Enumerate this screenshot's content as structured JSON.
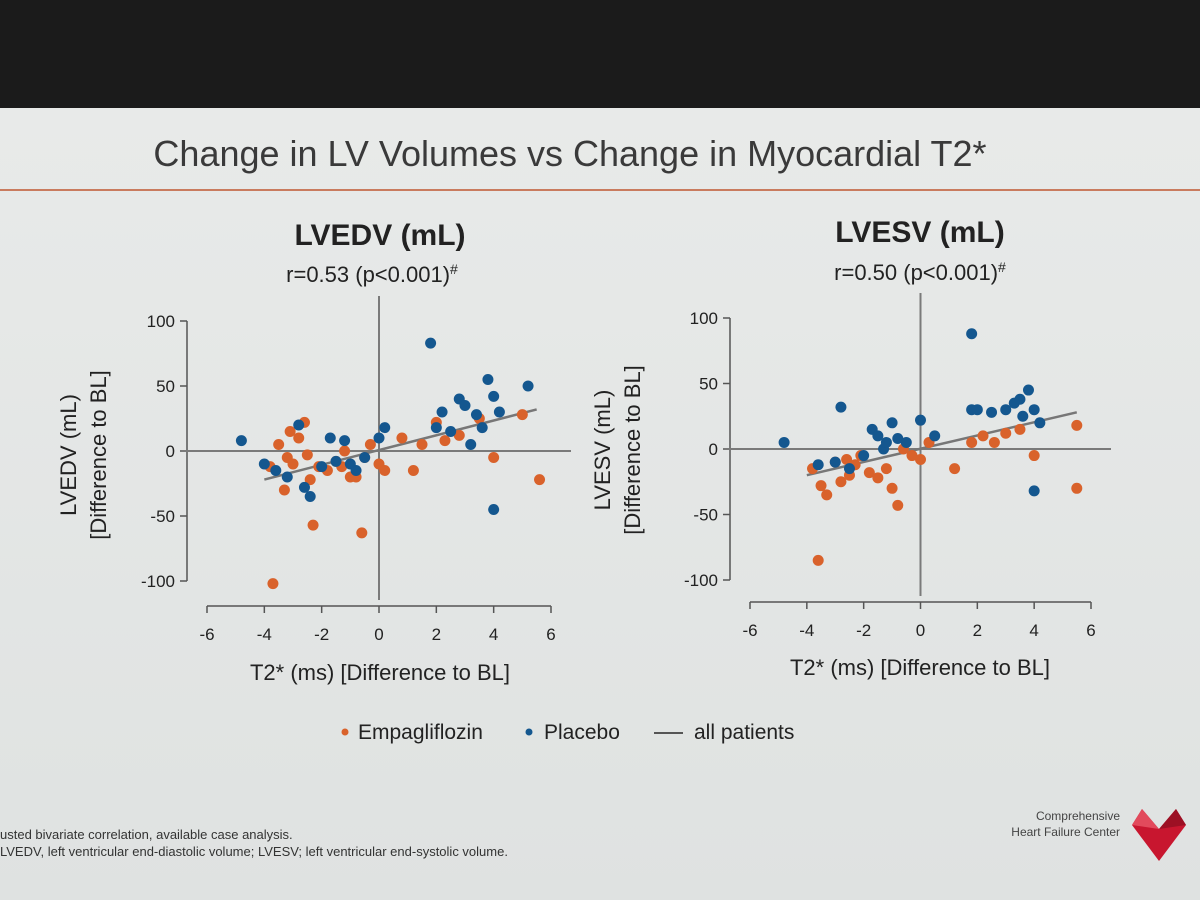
{
  "slide_title": "Change in LV Volumes vs Change in Myocardial T2*",
  "colors": {
    "empagliflozin": "#d9622b",
    "placebo": "#14578f",
    "trend": "#777777",
    "axis": "#555555"
  },
  "legend": {
    "empagliflozin": "Empagliflozin",
    "placebo": "Placebo",
    "all": "all patients"
  },
  "footnote": {
    "line1": "usted bivariate correlation, available case analysis.",
    "line2": "LVEDV, left ventricular end-diastolic volume; LVESV; left ventricular end-systolic volume."
  },
  "logo": {
    "line1": "Comprehensive",
    "line2": "Heart Failure Center"
  },
  "chart_data": [
    {
      "type": "scatter",
      "title": "LVEDV (mL)",
      "correlation": "r=0.53 (p<0.001)",
      "correlation_mark": "#",
      "xlabel": "T2* (ms) [Difference to BL]",
      "ylabel_line1": "LVEDV (mL)",
      "ylabel_line2": "[Difference to BL]",
      "xlim": [
        -6,
        6
      ],
      "ylim": [
        -100,
        100
      ],
      "xticks": [
        "-6",
        "-4",
        "-2",
        "0",
        "2",
        "4",
        "6"
      ],
      "yticks": [
        "100",
        "50",
        "0",
        "-50",
        "-100"
      ],
      "trend": [
        [
          -4,
          -22
        ],
        [
          5.5,
          32
        ]
      ],
      "series": [
        {
          "name": "Empagliflozin",
          "points": [
            [
              -3.8,
              -12
            ],
            [
              -3.5,
              5
            ],
            [
              -3.2,
              -5
            ],
            [
              -3,
              -10
            ],
            [
              -3.3,
              -30
            ],
            [
              -3.1,
              15
            ],
            [
              -2.8,
              10
            ],
            [
              -2.6,
              22
            ],
            [
              -2.5,
              -3
            ],
            [
              -2.4,
              -22
            ],
            [
              -2.3,
              -57
            ],
            [
              -2.1,
              -12
            ],
            [
              -1.8,
              -15
            ],
            [
              -1.5,
              -8
            ],
            [
              -1.3,
              -12
            ],
            [
              -1.2,
              0
            ],
            [
              -1,
              -20
            ],
            [
              -0.8,
              -20
            ],
            [
              -0.6,
              -63
            ],
            [
              -0.5,
              -5
            ],
            [
              -0.3,
              5
            ],
            [
              0,
              -10
            ],
            [
              0.2,
              -15
            ],
            [
              0.8,
              10
            ],
            [
              1.2,
              -15
            ],
            [
              1.5,
              5
            ],
            [
              2,
              22
            ],
            [
              2.3,
              8
            ],
            [
              2.8,
              12
            ],
            [
              3.5,
              25
            ],
            [
              4,
              -5
            ],
            [
              5,
              28
            ],
            [
              5.6,
              -22
            ],
            [
              -3.7,
              -102
            ]
          ]
        },
        {
          "name": "Placebo",
          "points": [
            [
              -4.8,
              8
            ],
            [
              -4,
              -10
            ],
            [
              -3.6,
              -15
            ],
            [
              -3.2,
              -20
            ],
            [
              -2.8,
              20
            ],
            [
              -2.6,
              -28
            ],
            [
              -2.4,
              -35
            ],
            [
              -2,
              -12
            ],
            [
              -1.7,
              10
            ],
            [
              -1.5,
              -8
            ],
            [
              -1.2,
              8
            ],
            [
              -1,
              -10
            ],
            [
              -0.8,
              -15
            ],
            [
              -0.5,
              -5
            ],
            [
              0,
              10
            ],
            [
              0.2,
              18
            ],
            [
              1.8,
              83
            ],
            [
              2,
              18
            ],
            [
              2.2,
              30
            ],
            [
              2.5,
              15
            ],
            [
              2.8,
              40
            ],
            [
              3,
              35
            ],
            [
              3.2,
              5
            ],
            [
              3.4,
              28
            ],
            [
              3.6,
              18
            ],
            [
              3.8,
              55
            ],
            [
              4,
              42
            ],
            [
              4.2,
              30
            ],
            [
              5.2,
              50
            ],
            [
              4,
              -45
            ]
          ]
        }
      ]
    },
    {
      "type": "scatter",
      "title": "LVESV (mL)",
      "correlation": "r=0.50 (p<0.001)",
      "correlation_mark": "#",
      "xlabel": "T2* (ms) [Difference to BL]",
      "ylabel_line1": "LVESV (mL)",
      "ylabel_line2": "[Difference to BL]",
      "xlim": [
        -6,
        6
      ],
      "ylim": [
        -100,
        100
      ],
      "xticks": [
        "-6",
        "-4",
        "-2",
        "0",
        "2",
        "4",
        "6"
      ],
      "yticks": [
        "100",
        "50",
        "0",
        "-50",
        "-100"
      ],
      "trend": [
        [
          -4,
          -20
        ],
        [
          5.5,
          28
        ]
      ],
      "series": [
        {
          "name": "Empagliflozin",
          "points": [
            [
              -3.8,
              -15
            ],
            [
              -3.5,
              -28
            ],
            [
              -3.3,
              -35
            ],
            [
              -3,
              -10
            ],
            [
              -2.8,
              -25
            ],
            [
              -2.6,
              -8
            ],
            [
              -2.5,
              -20
            ],
            [
              -2.3,
              -12
            ],
            [
              -2.1,
              -5
            ],
            [
              -1.8,
              -18
            ],
            [
              -1.5,
              -22
            ],
            [
              -1.2,
              -15
            ],
            [
              -1,
              -30
            ],
            [
              -0.8,
              -43
            ],
            [
              -0.6,
              0
            ],
            [
              -0.3,
              -5
            ],
            [
              0,
              -8
            ],
            [
              0.3,
              5
            ],
            [
              1.2,
              -15
            ],
            [
              1.8,
              5
            ],
            [
              2.2,
              10
            ],
            [
              2.6,
              5
            ],
            [
              3,
              12
            ],
            [
              3.5,
              15
            ],
            [
              4,
              -5
            ],
            [
              5.5,
              18
            ],
            [
              5.5,
              -30
            ],
            [
              -3.6,
              -85
            ]
          ]
        },
        {
          "name": "Placebo",
          "points": [
            [
              -4.8,
              5
            ],
            [
              -3.6,
              -12
            ],
            [
              -3,
              -10
            ],
            [
              -2.8,
              32
            ],
            [
              -2.5,
              -15
            ],
            [
              -2,
              -5
            ],
            [
              -1.7,
              15
            ],
            [
              -1.5,
              10
            ],
            [
              -1.3,
              0
            ],
            [
              -1.2,
              5
            ],
            [
              -1,
              20
            ],
            [
              -0.8,
              8
            ],
            [
              -0.5,
              5
            ],
            [
              0,
              22
            ],
            [
              0.5,
              10
            ],
            [
              1.8,
              88
            ],
            [
              1.8,
              30
            ],
            [
              2,
              30
            ],
            [
              2.5,
              28
            ],
            [
              3,
              30
            ],
            [
              3.3,
              35
            ],
            [
              3.5,
              38
            ],
            [
              3.6,
              25
            ],
            [
              3.8,
              45
            ],
            [
              4,
              30
            ],
            [
              4.2,
              20
            ],
            [
              4,
              -32
            ]
          ]
        }
      ]
    }
  ]
}
